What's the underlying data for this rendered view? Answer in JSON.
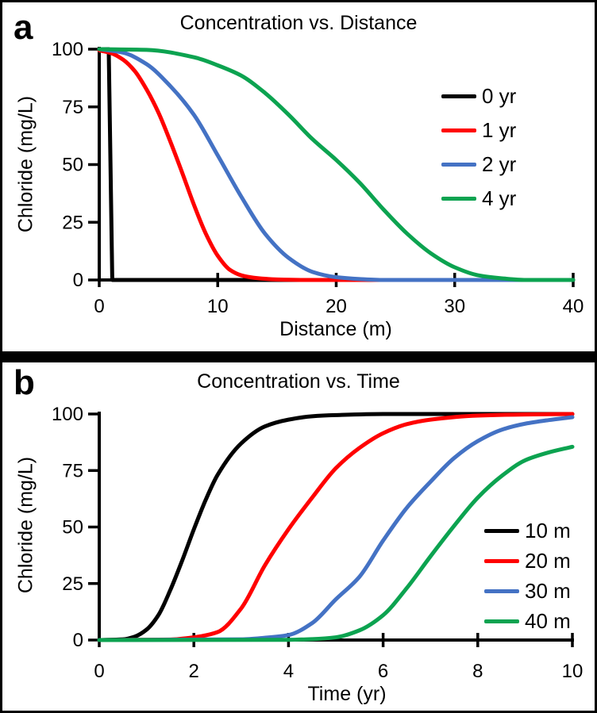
{
  "panels": [
    {
      "letter": "a"
    },
    {
      "letter": "b"
    }
  ],
  "colors": {
    "axis": "#000000",
    "background": "#ffffff"
  },
  "chart_data": [
    {
      "id": "a",
      "type": "line",
      "title": "Concentration vs. Distance",
      "xlabel": "Distance (m)",
      "ylabel": "Chloride (mg/L)",
      "xlim": [
        0,
        40
      ],
      "ylim": [
        0,
        100
      ],
      "xticks": [
        0,
        10,
        20,
        30,
        40
      ],
      "yticks": [
        0,
        25,
        50,
        75,
        100
      ],
      "grid": false,
      "legend_position": "upper right",
      "series": [
        {
          "name": "0 yr",
          "color": "#000000",
          "straight": true,
          "x": [
            0,
            0.8,
            1.1,
            40
          ],
          "y": [
            100,
            100,
            0,
            0
          ]
        },
        {
          "name": "1 yr",
          "color": "#ff0000",
          "x": [
            0,
            1,
            2,
            3,
            4,
            5,
            6,
            7,
            8,
            9,
            10,
            11,
            12,
            13,
            14,
            15,
            17,
            40
          ],
          "y": [
            99.5,
            98.3,
            95.5,
            90.5,
            82.5,
            72.5,
            60,
            46.5,
            32.5,
            20,
            10.5,
            4.5,
            2,
            1,
            0.5,
            0.2,
            0,
            0
          ]
        },
        {
          "name": "2 yr",
          "color": "#4472c4",
          "x": [
            0,
            2,
            4,
            6,
            8,
            10,
            12,
            14,
            16,
            18,
            20,
            22,
            24,
            40
          ],
          "y": [
            100,
            98.5,
            93.5,
            84,
            71.5,
            54,
            36,
            20,
            9.5,
            3.5,
            1.2,
            0.4,
            0,
            0
          ]
        },
        {
          "name": "4 yr",
          "color": "#0ca350",
          "x": [
            0,
            4,
            8,
            10,
            12,
            14,
            16,
            18,
            20,
            22,
            24,
            26,
            28,
            30,
            32,
            34,
            36,
            40
          ],
          "y": [
            100,
            99.7,
            96.5,
            93,
            88.5,
            81,
            71.5,
            61,
            52,
            42,
            30.5,
            20,
            11.5,
            5.5,
            2,
            0.7,
            0,
            0
          ]
        }
      ]
    },
    {
      "id": "b",
      "type": "line",
      "title": "Concentration vs. Time",
      "xlabel": "Time (yr)",
      "ylabel": "Chloride (mg/L)",
      "xlim": [
        0,
        10
      ],
      "ylim": [
        0,
        100
      ],
      "xticks": [
        0,
        2,
        4,
        6,
        8,
        10
      ],
      "yticks": [
        0,
        25,
        50,
        75,
        100
      ],
      "grid": false,
      "legend_position": "lower right",
      "series": [
        {
          "name": "10 m",
          "color": "#000000",
          "x": [
            0,
            0.5,
            0.75,
            1,
            1.25,
            1.5,
            1.75,
            2,
            2.25,
            2.5,
            3,
            3.5,
            4,
            4.5,
            5,
            6,
            7,
            8,
            10
          ],
          "y": [
            0,
            0.3,
            1.5,
            4.6,
            11,
            22,
            35,
            49,
            62,
            73,
            87,
            94.5,
            97.5,
            99,
            99.5,
            100,
            100,
            100,
            100
          ]
        },
        {
          "name": "20 m",
          "color": "#ff0000",
          "x": [
            0,
            1.5,
            2,
            2.5,
            3,
            3.5,
            4,
            4.5,
            5,
            5.5,
            6,
            6.5,
            7,
            8,
            9,
            10
          ],
          "y": [
            0,
            0.2,
            1.2,
            3.5,
            14,
            33,
            49,
            63,
            76,
            85,
            91.5,
            95.5,
            97.5,
            99.3,
            99.8,
            100
          ]
        },
        {
          "name": "30 m",
          "color": "#4472c4",
          "x": [
            0,
            3,
            3.5,
            4,
            4.5,
            5,
            5.5,
            6,
            6.5,
            7,
            7.5,
            8,
            8.5,
            9,
            9.5,
            10
          ],
          "y": [
            0,
            0.3,
            1,
            2.2,
            7.5,
            18,
            28,
            44,
            58.5,
            70,
            80.5,
            88,
            93,
            95.7,
            97.3,
            98.6
          ]
        },
        {
          "name": "40 m",
          "color": "#0ca350",
          "x": [
            0,
            4,
            4.5,
            5,
            5.5,
            6,
            6.5,
            7,
            7.5,
            8,
            8.5,
            9,
            9.5,
            10
          ],
          "y": [
            0,
            0.1,
            0.4,
            1.2,
            4.3,
            11,
            23,
            37,
            50.5,
            63,
            72.5,
            79.5,
            83,
            85.5
          ]
        }
      ]
    }
  ]
}
